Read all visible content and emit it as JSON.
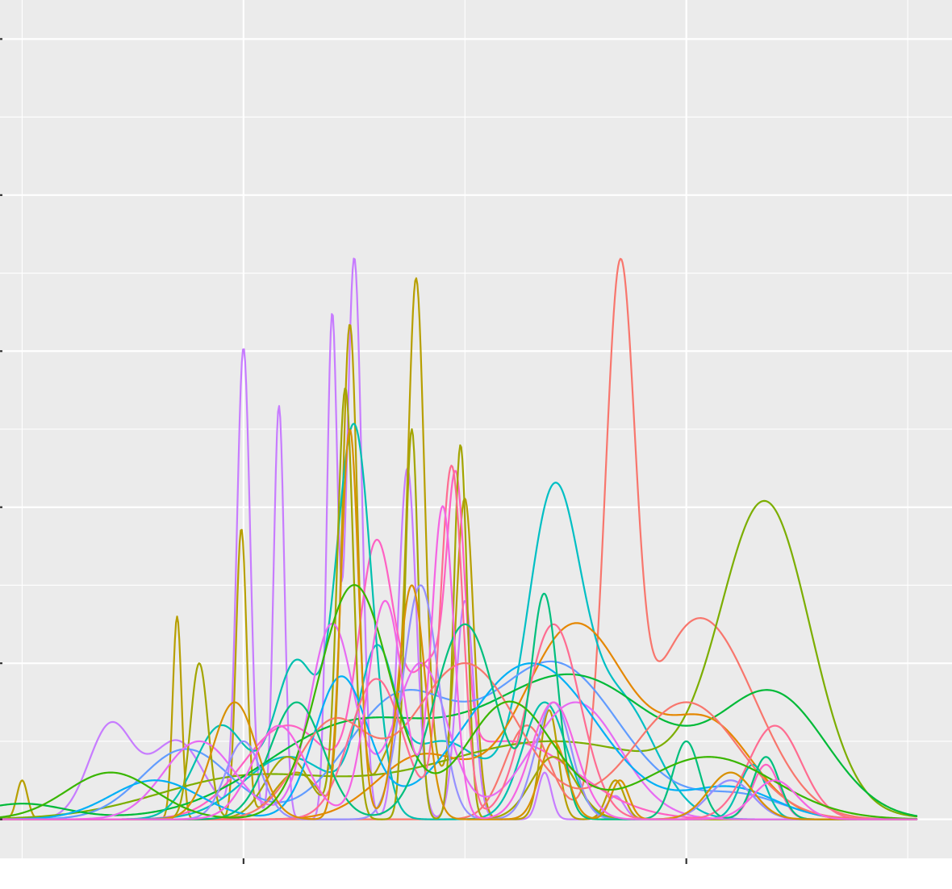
{
  "chart_data": {
    "type": "line",
    "title": "",
    "xlabel": "",
    "ylabel": "",
    "xlim": [
      -0.05,
      2.1
    ],
    "ylim": [
      -0.05,
      1.05
    ],
    "x_major_ticks": [
      0.5,
      1.5
    ],
    "x_minor_ticks": [
      0.0,
      1.0,
      2.0
    ],
    "y_major_ticks": [
      0.0,
      0.2,
      0.4,
      0.6,
      0.8,
      1.0
    ],
    "y_minor_ticks": [
      0.1,
      0.3,
      0.5,
      0.7,
      0.9
    ],
    "tick_labels_visible": false,
    "grid": true,
    "legend": "none",
    "x_range": [
      -0.21,
      2.02
    ],
    "series": [
      {
        "color": "#C77CFF",
        "components": [
          [
            0.75,
            0.72,
            0.017
          ],
          [
            0.7,
            0.64,
            0.012
          ],
          [
            0.5,
            0.6,
            0.015
          ],
          [
            0.58,
            0.53,
            0.012
          ],
          [
            0.87,
            0.45,
            0.02
          ],
          [
            1.0,
            0.28,
            0.02
          ],
          [
            0.2,
            0.12,
            0.05
          ],
          [
            0.35,
            0.1,
            0.06
          ],
          [
            1.18,
            0.06,
            0.015
          ],
          [
            1.34,
            0.03,
            0.02
          ],
          [
            1.6,
            0.05,
            0.05
          ]
        ]
      },
      {
        "color": "#B79F00",
        "components": [
          [
            0.74,
            0.62,
            0.017
          ],
          [
            0.89,
            0.58,
            0.018
          ],
          [
            0.495,
            0.37,
            0.012
          ],
          [
            0.35,
            0.26,
            0.01
          ],
          [
            0.0,
            0.05,
            0.012
          ],
          [
            1.0,
            0.4,
            0.02
          ],
          [
            0.87,
            0.12,
            0.06
          ],
          [
            1.19,
            0.14,
            0.02
          ],
          [
            1.34,
            0.05,
            0.02
          ],
          [
            0.62,
            0.06,
            0.05
          ]
        ]
      },
      {
        "color": "#F8766D",
        "components": [
          [
            1.35,
            0.65,
            0.033
          ],
          [
            1.5,
            0.2,
            0.1
          ],
          [
            1.14,
            0.12,
            0.05
          ],
          [
            1.62,
            0.1,
            0.1
          ]
        ]
      },
      {
        "color": "#FF61C3",
        "components": [
          [
            0.8,
            0.32,
            0.04
          ],
          [
            0.92,
            0.15,
            0.05
          ],
          [
            0.98,
            0.3,
            0.02
          ],
          [
            0.6,
            0.12,
            0.1
          ],
          [
            1.1,
            0.1,
            0.15
          ],
          [
            1.68,
            0.07,
            0.03
          ]
        ]
      },
      {
        "color": "#00BFC4",
        "components": [
          [
            1.2,
            0.4,
            0.06
          ],
          [
            1.35,
            0.15,
            0.08
          ],
          [
            0.8,
            0.18,
            0.04
          ],
          [
            0.95,
            0.1,
            0.1
          ],
          [
            0.6,
            0.08,
            0.1
          ]
        ]
      },
      {
        "color": "#7CAE00",
        "components": [
          [
            1.68,
            0.38,
            0.1
          ],
          [
            1.2,
            0.1,
            0.3
          ],
          [
            0.5,
            0.05,
            0.2
          ]
        ]
      },
      {
        "color": "#619CFF",
        "components": [
          [
            1.2,
            0.2,
            0.15
          ],
          [
            0.85,
            0.15,
            0.12
          ],
          [
            0.37,
            0.09,
            0.1
          ],
          [
            1.62,
            0.03,
            0.1
          ]
        ]
      },
      {
        "color": "#00BA38",
        "components": [
          [
            1.7,
            0.15,
            0.12
          ],
          [
            1.25,
            0.18,
            0.2
          ],
          [
            0.75,
            0.12,
            0.2
          ],
          [
            0.0,
            0.02,
            0.1
          ]
        ]
      },
      {
        "color": "#E58700",
        "components": [
          [
            1.25,
            0.25,
            0.12
          ],
          [
            1.55,
            0.12,
            0.1
          ],
          [
            0.9,
            0.08,
            0.1
          ]
        ]
      },
      {
        "color": "#00C0AF",
        "components": [
          [
            0.75,
            0.5,
            0.04
          ],
          [
            0.62,
            0.2,
            0.05
          ],
          [
            1.18,
            0.15,
            0.05
          ],
          [
            0.45,
            0.12,
            0.06
          ],
          [
            1.65,
            0.07,
            0.03
          ]
        ]
      },
      {
        "color": "#A3A500",
        "components": [
          [
            0.73,
            0.55,
            0.018
          ],
          [
            0.88,
            0.5,
            0.015
          ],
          [
            0.99,
            0.48,
            0.015
          ],
          [
            0.4,
            0.2,
            0.02
          ],
          [
            1.2,
            0.08,
            0.05
          ],
          [
            0.6,
            0.08,
            0.05
          ]
        ]
      },
      {
        "color": "#E76BF3",
        "components": [
          [
            0.9,
            0.2,
            0.06
          ],
          [
            0.7,
            0.25,
            0.05
          ],
          [
            1.25,
            0.15,
            0.1
          ],
          [
            0.4,
            0.1,
            0.08
          ]
        ]
      },
      {
        "color": "#00B0F6",
        "components": [
          [
            0.72,
            0.18,
            0.06
          ],
          [
            1.15,
            0.2,
            0.15
          ],
          [
            1.6,
            0.04,
            0.1
          ],
          [
            0.3,
            0.05,
            0.1
          ]
        ]
      },
      {
        "color": "#9590FF",
        "components": [
          [
            0.9,
            0.3,
            0.04
          ],
          [
            1.2,
            0.15,
            0.04
          ],
          [
            0.5,
            0.1,
            0.04
          ],
          [
            1.6,
            0.05,
            0.05
          ]
        ]
      },
      {
        "color": "#FF6C91",
        "components": [
          [
            0.97,
            0.45,
            0.025
          ],
          [
            1.2,
            0.25,
            0.06
          ],
          [
            0.8,
            0.18,
            0.06
          ],
          [
            1.7,
            0.12,
            0.06
          ]
        ]
      },
      {
        "color": "#F8766D",
        "components": [
          [
            1.0,
            0.2,
            0.12
          ],
          [
            0.7,
            0.12,
            0.08
          ],
          [
            1.5,
            0.15,
            0.12
          ]
        ]
      },
      {
        "color": "#00BF7D",
        "components": [
          [
            1.0,
            0.25,
            0.07
          ],
          [
            1.18,
            0.28,
            0.03
          ],
          [
            0.62,
            0.15,
            0.06
          ],
          [
            1.5,
            0.1,
            0.03
          ],
          [
            1.68,
            0.08,
            0.03
          ]
        ]
      },
      {
        "color": "#D89000",
        "components": [
          [
            0.74,
            0.5,
            0.02
          ],
          [
            0.88,
            0.3,
            0.03
          ],
          [
            0.48,
            0.15,
            0.05
          ],
          [
            1.2,
            0.1,
            0.03
          ],
          [
            1.35,
            0.05,
            0.02
          ],
          [
            1.6,
            0.06,
            0.05
          ]
        ]
      },
      {
        "color": "#39B600",
        "components": [
          [
            0.75,
            0.3,
            0.08
          ],
          [
            1.1,
            0.15,
            0.1
          ],
          [
            1.55,
            0.08,
            0.15
          ],
          [
            0.2,
            0.06,
            0.1
          ]
        ]
      },
      {
        "color": "#F564E3",
        "components": [
          [
            0.95,
            0.4,
            0.025
          ],
          [
            0.82,
            0.28,
            0.04
          ],
          [
            1.2,
            0.15,
            0.05
          ],
          [
            0.58,
            0.12,
            0.06
          ],
          [
            1.7,
            0.05,
            0.05
          ]
        ]
      }
    ]
  }
}
